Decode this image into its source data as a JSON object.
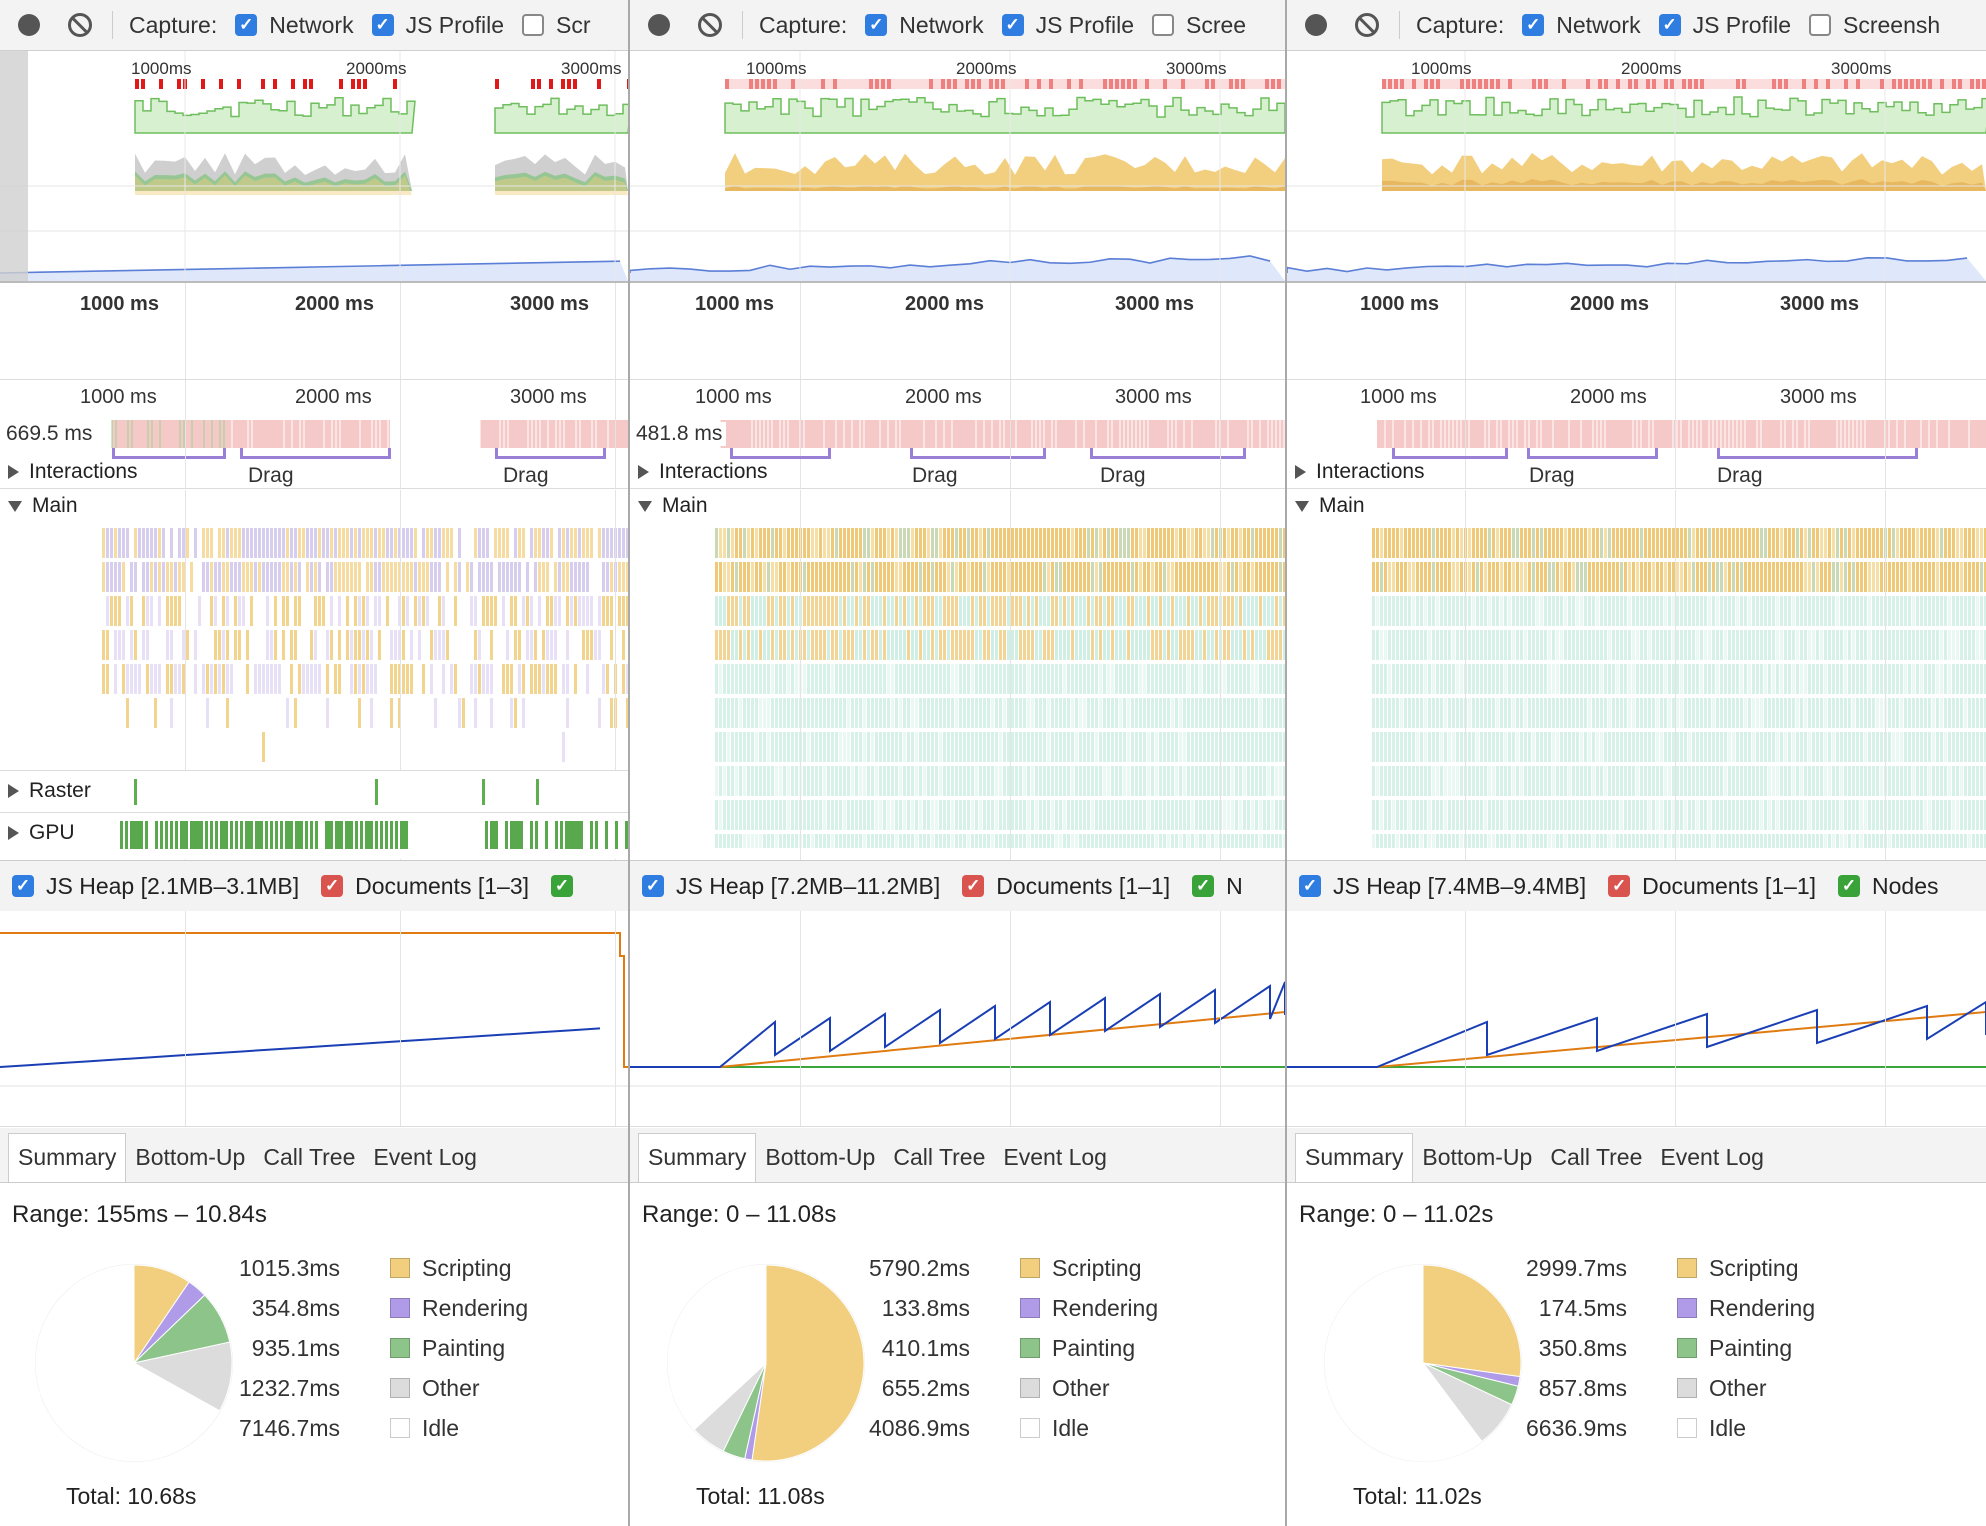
{
  "colors": {
    "scripting": "#f2cf7e",
    "rendering": "#b09be8",
    "painting": "#8cc48a",
    "other": "#dcdcdc",
    "idle": "#ffffff",
    "fps": "#d7f0cf",
    "fps_line": "#6fbe5e",
    "long_frame": "#e01818",
    "heap_line": "#1a3fb5",
    "documents_line": "#e07b12",
    "nodes_line": "#3aa53a",
    "interaction": "#f6c9c9",
    "checkbox": "#2f7de1"
  },
  "icons": {
    "record": "record-icon",
    "clear": "clear-icon",
    "expand": "triangle-right-icon",
    "collapse": "triangle-down-icon",
    "check": "checkmark-icon"
  },
  "panels": [
    {
      "toolbar": {
        "capture_label": "Capture:",
        "network_label": "Network",
        "jsprofile_label": "JS Profile",
        "screenshots_label": "Scr"
      },
      "overview_ticks": [
        "1000ms",
        "2000ms",
        "3000ms"
      ],
      "ruler_ticks": [
        "1000 ms",
        "2000 ms",
        "3000 ms"
      ],
      "interaction_time": "669.5 ms",
      "tracks": {
        "interactions": "Interactions",
        "main": "Main",
        "raster": "Raster",
        "gpu": "GPU"
      },
      "drag_labels": [
        "Drag",
        "Drag"
      ],
      "counters": {
        "heap": "JS Heap [2.1MB–3.1MB]",
        "documents": "Documents [1–3]",
        "nodes": ""
      },
      "tabs": [
        "Summary",
        "Bottom-Up",
        "Call Tree",
        "Event Log"
      ],
      "summary": {
        "range": "Range: 155ms – 10.84s",
        "rows": [
          {
            "value": "1015.3ms",
            "label": "Scripting"
          },
          {
            "value": "354.8ms",
            "label": "Rendering"
          },
          {
            "value": "935.1ms",
            "label": "Painting"
          },
          {
            "value": "1232.7ms",
            "label": "Other"
          },
          {
            "value": "7146.7ms",
            "label": "Idle"
          }
        ],
        "total": "Total: 10.68s"
      }
    },
    {
      "toolbar": {
        "capture_label": "Capture:",
        "network_label": "Network",
        "jsprofile_label": "JS Profile",
        "screenshots_label": "Scree"
      },
      "overview_ticks": [
        "1000ms",
        "2000ms",
        "3000ms"
      ],
      "ruler_ticks": [
        "1000 ms",
        "2000 ms",
        "3000 ms"
      ],
      "interaction_time": "481.8 ms",
      "tracks": {
        "interactions": "Interactions",
        "main": "Main",
        "raster": "",
        "gpu": ""
      },
      "drag_labels": [
        "Drag",
        "Drag"
      ],
      "counters": {
        "heap": "JS Heap [7.2MB–11.2MB]",
        "documents": "Documents [1–1]",
        "nodes": "N"
      },
      "tabs": [
        "Summary",
        "Bottom-Up",
        "Call Tree",
        "Event Log"
      ],
      "summary": {
        "range": "Range: 0 – 11.08s",
        "rows": [
          {
            "value": "5790.2ms",
            "label": "Scripting"
          },
          {
            "value": "133.8ms",
            "label": "Rendering"
          },
          {
            "value": "410.1ms",
            "label": "Painting"
          },
          {
            "value": "655.2ms",
            "label": "Other"
          },
          {
            "value": "4086.9ms",
            "label": "Idle"
          }
        ],
        "total": "Total: 11.08s"
      }
    },
    {
      "toolbar": {
        "capture_label": "Capture:",
        "network_label": "Network",
        "jsprofile_label": "JS Profile",
        "screenshots_label": "Screensh"
      },
      "overview_ticks": [
        "1000ms",
        "2000ms",
        "3000ms"
      ],
      "ruler_ticks": [
        "1000 ms",
        "2000 ms",
        "3000 ms"
      ],
      "interaction_time": "",
      "tracks": {
        "interactions": "Interactions",
        "main": "Main",
        "raster": "",
        "gpu": ""
      },
      "drag_labels": [
        "Drag",
        "Drag"
      ],
      "counters": {
        "heap": "JS Heap [7.4MB–9.4MB]",
        "documents": "Documents [1–1]",
        "nodes": "Nodes"
      },
      "tabs": [
        "Summary",
        "Bottom-Up",
        "Call Tree",
        "Event Log"
      ],
      "summary": {
        "range": "Range: 0 – 11.02s",
        "rows": [
          {
            "value": "2999.7ms",
            "label": "Scripting"
          },
          {
            "value": "174.5ms",
            "label": "Rendering"
          },
          {
            "value": "350.8ms",
            "label": "Painting"
          },
          {
            "value": "857.8ms",
            "label": "Other"
          },
          {
            "value": "6636.9ms",
            "label": "Idle"
          }
        ],
        "total": "Total: 11.02s"
      }
    }
  ]
}
